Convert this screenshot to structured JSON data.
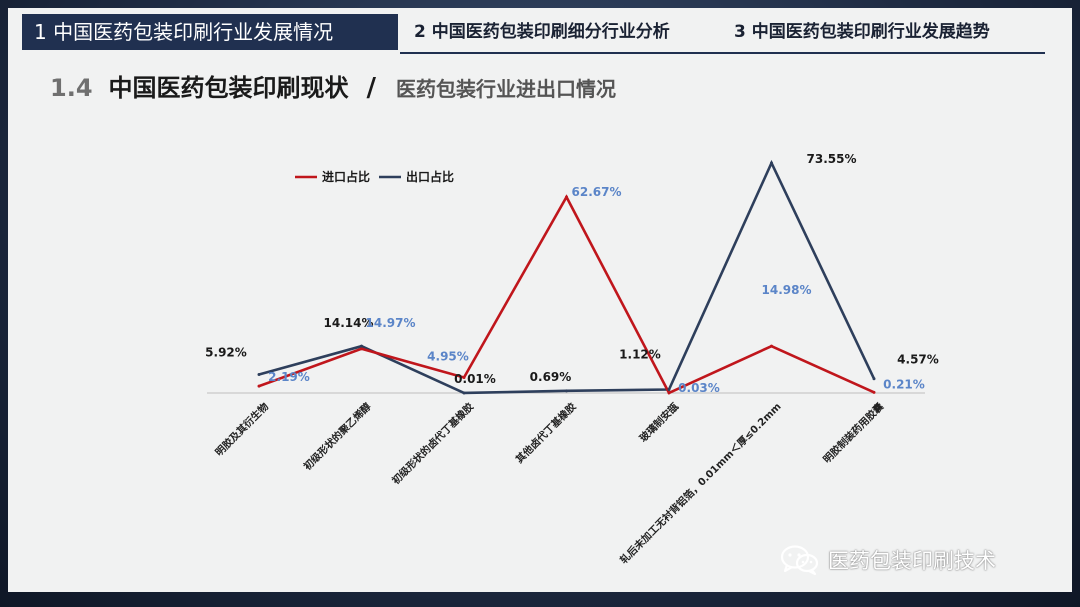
{
  "header": {
    "tabs": [
      {
        "label": "1  中国医药包装印刷行业发展情况",
        "active": true
      },
      {
        "label": "2  中国医药包装印刷细分行业分析",
        "active": false
      },
      {
        "label": "3  中国医药包装印刷行业发展趋势",
        "active": false
      }
    ]
  },
  "section": {
    "number": "1.4",
    "title": "中国医药包装印刷现状",
    "slash": "/",
    "subtitle": "医药包装行业进出口情况"
  },
  "watermark": {
    "text": "医药包装印刷技术",
    "icon": "wechat-icon"
  },
  "colors": {
    "active_tab": "#203050",
    "import": "#c0161c",
    "export": "#2e3f5c",
    "blue_label": "#5b85c8",
    "dark_label": "#1a1a1a"
  },
  "chart_data": {
    "type": "line",
    "categories": [
      "明胶及其衍生物",
      "初级形状的聚乙烯醇",
      "初级形状的卤代丁基橡胶",
      "其他卤代丁基橡胶",
      "玻璃制安瓿",
      "轧后未加工无衬背铝箔，0.01mm＜厚≤0.2mm",
      "明胶制装药用胶囊"
    ],
    "series": [
      {
        "name": "进口占比",
        "color": "#c0161c",
        "values": [
          2.19,
          14.14,
          4.95,
          62.67,
          0.03,
          14.98,
          0.21
        ],
        "labels": [
          "2.19%",
          "14.14%",
          "4.95%",
          "62.67%",
          "0.03%",
          "14.98%",
          "0.21%"
        ]
      },
      {
        "name": "出口占比",
        "color": "#2e3f5c",
        "values": [
          5.92,
          14.97,
          0.01,
          0.69,
          1.12,
          73.55,
          4.57
        ],
        "labels": [
          "5.92%",
          "14.97%",
          "0.01%",
          "0.69%",
          "1.12%",
          "73.55%",
          "4.57%"
        ]
      }
    ],
    "ylim": [
      0,
      75
    ],
    "legend": "top-left",
    "grid": false
  }
}
